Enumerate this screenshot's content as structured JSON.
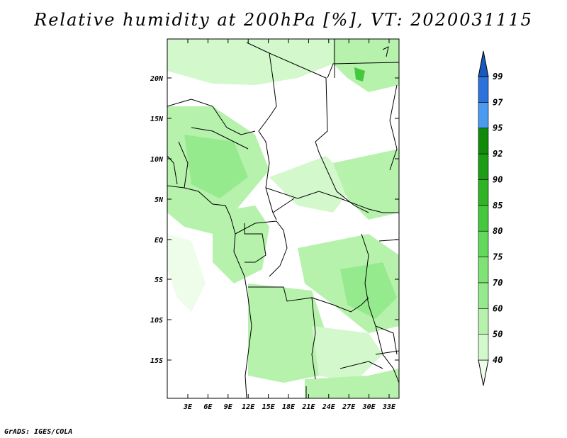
{
  "title": "Relative humidity at 200hPa [%], VT: 2020031115",
  "credit": "GrADS: IGES/COLA",
  "map": {
    "lat_labels": [
      "20N",
      "15N",
      "10N",
      "5N",
      "EQ",
      "5S",
      "10S",
      "15S"
    ],
    "lon_labels": [
      "3E",
      "6E",
      "9E",
      "12E",
      "15E",
      "18E",
      "21E",
      "24E",
      "27E",
      "30E",
      "33E"
    ]
  },
  "colorbar": {
    "levels": [
      "40",
      "50",
      "60",
      "70",
      "75",
      "80",
      "85",
      "90",
      "92",
      "95",
      "97",
      "99"
    ],
    "colors": [
      "#eefcea",
      "#d2f8cc",
      "#b6f2ac",
      "#96ea8e",
      "#7ee274",
      "#62d85c",
      "#46c83e",
      "#2eb424",
      "#1d9c15",
      "#118a0b",
      "#4a9af0",
      "#2c72da",
      "#1a58c0"
    ]
  }
}
